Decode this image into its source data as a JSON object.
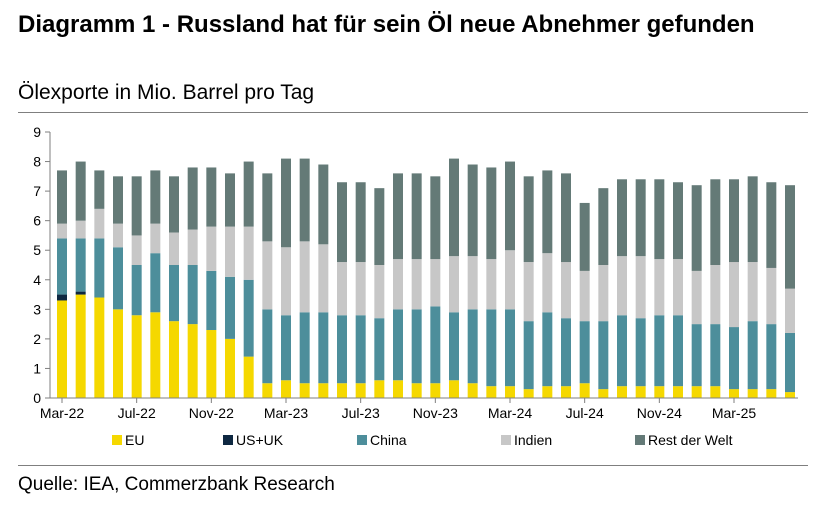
{
  "title": "Diagramm 1 - Russland hat für sein Öl neue Abnehmer gefunden",
  "subtitle": "Ölexporte in Mio. Barrel pro Tag",
  "source": "Quelle: IEA, Commerzbank Research",
  "chart_data": {
    "type": "bar",
    "stacked": true,
    "ylim": [
      0,
      9
    ],
    "yticks": [
      "0",
      "1",
      "2",
      "3",
      "4",
      "5",
      "6",
      "7",
      "8",
      "9"
    ],
    "xtick_labels": [
      "Mar-22",
      "Jul-22",
      "Nov-22",
      "Mar-23",
      "Jul-23",
      "Nov-23",
      "Mar-24",
      "Jul-24",
      "Nov-24",
      "Mar-25"
    ],
    "xtick_every": 4,
    "months": 40,
    "grid": false,
    "legend_position": "bottom",
    "series": [
      {
        "name": "EU",
        "color": "#f5d800",
        "values": [
          3.3,
          3.5,
          3.4,
          3.0,
          2.8,
          2.9,
          2.6,
          2.5,
          2.3,
          2.0,
          1.4,
          0.5,
          0.6,
          0.5,
          0.5,
          0.5,
          0.5,
          0.6,
          0.6,
          0.5,
          0.5,
          0.6,
          0.5,
          0.4,
          0.4,
          0.3,
          0.4,
          0.4,
          0.5,
          0.3,
          0.4,
          0.4,
          0.4,
          0.4,
          0.4,
          0.4,
          0.3,
          0.3,
          0.3,
          0.2
        ]
      },
      {
        "name": "US+UK",
        "color": "#0e2841",
        "values": [
          0.2,
          0.1,
          0,
          0,
          0,
          0,
          0,
          0,
          0,
          0,
          0,
          0,
          0,
          0,
          0,
          0,
          0,
          0,
          0,
          0,
          0,
          0,
          0,
          0,
          0,
          0,
          0,
          0,
          0,
          0,
          0,
          0,
          0,
          0,
          0,
          0,
          0,
          0,
          0,
          0
        ]
      },
      {
        "name": "China",
        "color": "#4d8e9b",
        "values": [
          1.9,
          1.8,
          2.0,
          2.1,
          1.7,
          2.0,
          1.9,
          2.0,
          2.0,
          2.1,
          2.6,
          2.5,
          2.2,
          2.4,
          2.4,
          2.3,
          2.3,
          2.1,
          2.4,
          2.5,
          2.6,
          2.3,
          2.5,
          2.6,
          2.6,
          2.3,
          2.5,
          2.3,
          2.1,
          2.3,
          2.4,
          2.3,
          2.4,
          2.4,
          2.1,
          2.1,
          2.1,
          2.3,
          2.2,
          2.0
        ]
      },
      {
        "name": "Indien",
        "color": "#c7c7c7",
        "values": [
          0.5,
          0.6,
          1.0,
          0.8,
          1.0,
          1.0,
          1.1,
          1.2,
          1.5,
          1.7,
          1.8,
          2.3,
          2.3,
          2.4,
          2.3,
          1.8,
          1.8,
          1.8,
          1.7,
          1.7,
          1.6,
          1.9,
          1.8,
          1.7,
          2.0,
          2.0,
          2.0,
          1.9,
          1.7,
          1.9,
          2.0,
          2.1,
          1.9,
          1.9,
          1.8,
          2.0,
          2.2,
          2.0,
          1.9,
          1.5
        ]
      },
      {
        "name": "Rest der Welt",
        "color": "#647a77",
        "values": [
          1.8,
          2.0,
          1.3,
          1.6,
          2.0,
          1.8,
          1.9,
          2.1,
          2.0,
          1.8,
          2.2,
          2.3,
          3.0,
          2.8,
          2.7,
          2.7,
          2.7,
          2.6,
          2.9,
          2.9,
          2.8,
          3.3,
          3.1,
          3.1,
          3.0,
          2.9,
          2.8,
          3.0,
          2.3,
          2.6,
          2.6,
          2.6,
          2.7,
          2.6,
          2.9,
          2.9,
          2.8,
          2.9,
          2.9,
          3.5
        ]
      }
    ]
  }
}
